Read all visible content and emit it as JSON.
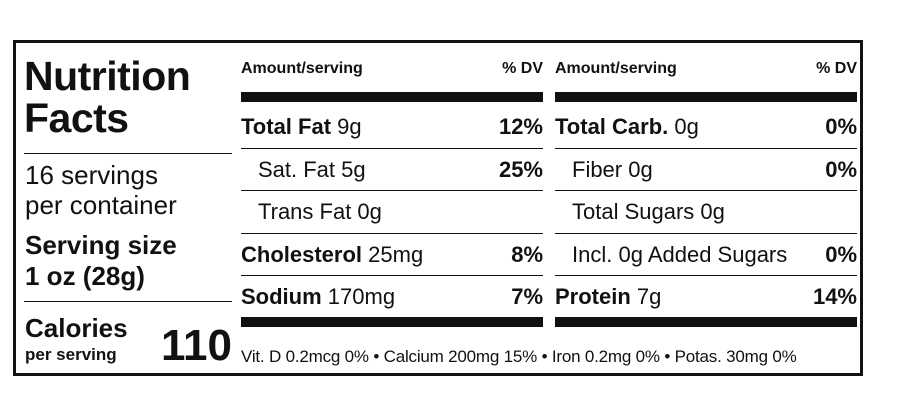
{
  "panel": {
    "title_line1": "Nutrition",
    "title_line2": "Facts",
    "servings_line1": "16 servings",
    "servings_line2": "per container",
    "serving_size_label": "Serving size",
    "serving_size_value": "1 oz (28g)",
    "calories_label": "Calories",
    "calories_sublabel": "per serving",
    "calories_value": "110"
  },
  "headers": {
    "amount": "Amount/serving",
    "dv": "% DV"
  },
  "left_column": [
    {
      "name": "Total Fat",
      "amount": " 9g",
      "dv": "12%",
      "bold": true
    },
    {
      "name": "Sat. Fat 5g",
      "amount": "",
      "dv": "25%",
      "bold": false
    },
    {
      "name": "Trans Fat 0g",
      "amount": "",
      "dv": "",
      "bold": false
    },
    {
      "name": "Cholesterol",
      "amount": " 25mg",
      "dv": "8%",
      "bold": true
    },
    {
      "name": "Sodium",
      "amount": " 170mg",
      "dv": "7%",
      "bold": true
    }
  ],
  "right_column": [
    {
      "name": "Total Carb.",
      "amount": " 0g",
      "dv": "0%",
      "bold": true
    },
    {
      "name": "Fiber 0g",
      "amount": "",
      "dv": "0%",
      "bold": false
    },
    {
      "name": "Total Sugars 0g",
      "amount": "",
      "dv": "",
      "bold": false
    },
    {
      "name": "Incl. 0g Added Sugars",
      "amount": "",
      "dv": "0%",
      "bold": false
    },
    {
      "name": "Protein",
      "amount": " 7g",
      "dv": "14%",
      "bold": true
    }
  ],
  "vitamins": "Vit. D 0.2mcg 0%  •  Calcium 200mg 15%  •  Iron 0.2mg 0% • Potas. 30mg 0%"
}
